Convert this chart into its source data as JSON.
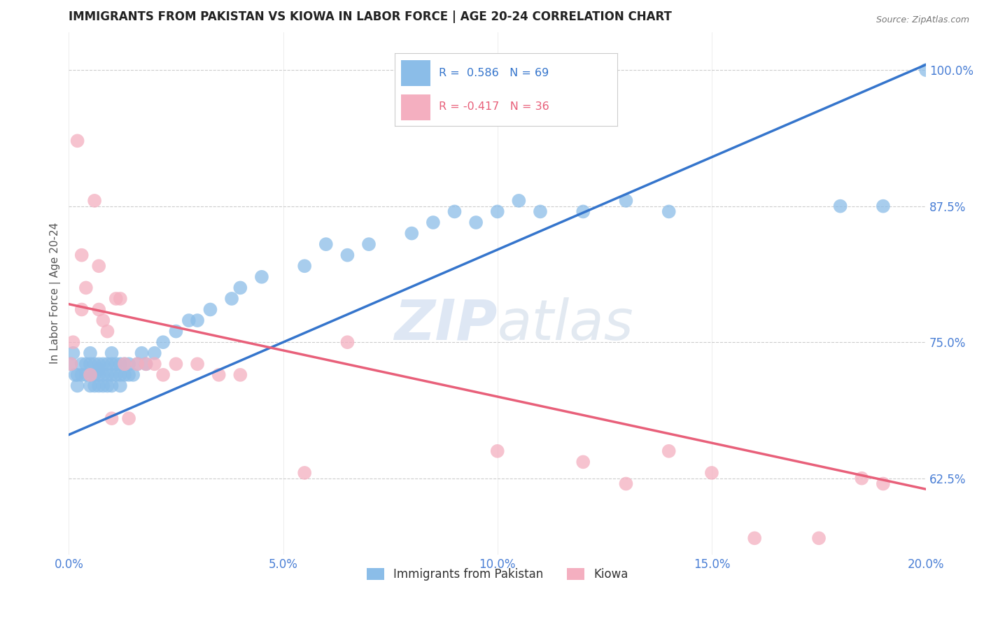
{
  "title": "IMMIGRANTS FROM PAKISTAN VS KIOWA IN LABOR FORCE | AGE 20-24 CORRELATION CHART",
  "source": "Source: ZipAtlas.com",
  "ylabel": "In Labor Force | Age 20-24",
  "xlim": [
    0.0,
    0.2
  ],
  "ylim": [
    0.555,
    1.035
  ],
  "ytick_labels": [
    "62.5%",
    "75.0%",
    "87.5%",
    "100.0%"
  ],
  "ytick_values": [
    0.625,
    0.75,
    0.875,
    1.0
  ],
  "xtick_major_vals": [
    0.0,
    0.05,
    0.1,
    0.15,
    0.2
  ],
  "xtick_major_labels": [
    "0.0%",
    "5.0%",
    "10.0%",
    "15.0%",
    "20.0%"
  ],
  "pakistan_color": "#8bbde8",
  "kiowa_color": "#f4afc0",
  "pakistan_line_color": "#3575cc",
  "kiowa_line_color": "#e8607a",
  "R_pakistan": 0.586,
  "N_pakistan": 69,
  "R_kiowa": -0.417,
  "N_kiowa": 36,
  "pakistan_scatter_x": [
    0.0005,
    0.001,
    0.0015,
    0.002,
    0.002,
    0.003,
    0.003,
    0.004,
    0.004,
    0.005,
    0.005,
    0.005,
    0.005,
    0.006,
    0.006,
    0.006,
    0.007,
    0.007,
    0.007,
    0.007,
    0.008,
    0.008,
    0.008,
    0.009,
    0.009,
    0.009,
    0.01,
    0.01,
    0.01,
    0.01,
    0.011,
    0.011,
    0.012,
    0.012,
    0.012,
    0.013,
    0.013,
    0.014,
    0.014,
    0.015,
    0.016,
    0.017,
    0.018,
    0.02,
    0.022,
    0.025,
    0.028,
    0.03,
    0.033,
    0.038,
    0.04,
    0.045,
    0.055,
    0.06,
    0.065,
    0.07,
    0.08,
    0.085,
    0.09,
    0.095,
    0.1,
    0.105,
    0.11,
    0.12,
    0.13,
    0.14,
    0.18,
    0.19,
    0.2
  ],
  "pakistan_scatter_y": [
    0.73,
    0.74,
    0.72,
    0.71,
    0.72,
    0.72,
    0.73,
    0.72,
    0.73,
    0.71,
    0.72,
    0.73,
    0.74,
    0.71,
    0.72,
    0.73,
    0.71,
    0.72,
    0.725,
    0.73,
    0.71,
    0.72,
    0.73,
    0.71,
    0.72,
    0.73,
    0.71,
    0.72,
    0.73,
    0.74,
    0.72,
    0.73,
    0.71,
    0.72,
    0.73,
    0.72,
    0.73,
    0.72,
    0.73,
    0.72,
    0.73,
    0.74,
    0.73,
    0.74,
    0.75,
    0.76,
    0.77,
    0.77,
    0.78,
    0.79,
    0.8,
    0.81,
    0.82,
    0.84,
    0.83,
    0.84,
    0.85,
    0.86,
    0.87,
    0.86,
    0.87,
    0.88,
    0.87,
    0.87,
    0.88,
    0.87,
    0.875,
    0.875,
    1.0
  ],
  "kiowa_scatter_x": [
    0.0005,
    0.001,
    0.002,
    0.003,
    0.003,
    0.004,
    0.005,
    0.006,
    0.007,
    0.007,
    0.008,
    0.009,
    0.01,
    0.011,
    0.012,
    0.013,
    0.014,
    0.016,
    0.018,
    0.02,
    0.022,
    0.025,
    0.03,
    0.035,
    0.04,
    0.055,
    0.065,
    0.1,
    0.12,
    0.13,
    0.14,
    0.15,
    0.16,
    0.175,
    0.185,
    0.19
  ],
  "kiowa_scatter_y": [
    0.73,
    0.75,
    0.935,
    0.83,
    0.78,
    0.8,
    0.72,
    0.88,
    0.82,
    0.78,
    0.77,
    0.76,
    0.68,
    0.79,
    0.79,
    0.73,
    0.68,
    0.73,
    0.73,
    0.73,
    0.72,
    0.73,
    0.73,
    0.72,
    0.72,
    0.63,
    0.75,
    0.65,
    0.64,
    0.62,
    0.65,
    0.63,
    0.57,
    0.57,
    0.625,
    0.62
  ],
  "pakistan_trend_x": [
    0.0,
    0.2
  ],
  "pakistan_trend_y": [
    0.665,
    1.005
  ],
  "kiowa_trend_x": [
    0.0,
    0.2
  ],
  "kiowa_trend_y": [
    0.785,
    0.615
  ],
  "watermark_zip": "ZIP",
  "watermark_atlas": "atlas",
  "background_color": "#ffffff",
  "grid_color": "#cccccc",
  "title_color": "#222222",
  "axis_label_color": "#555555",
  "tick_color": "#4a7fd5",
  "legend_border_color": "#cccccc"
}
